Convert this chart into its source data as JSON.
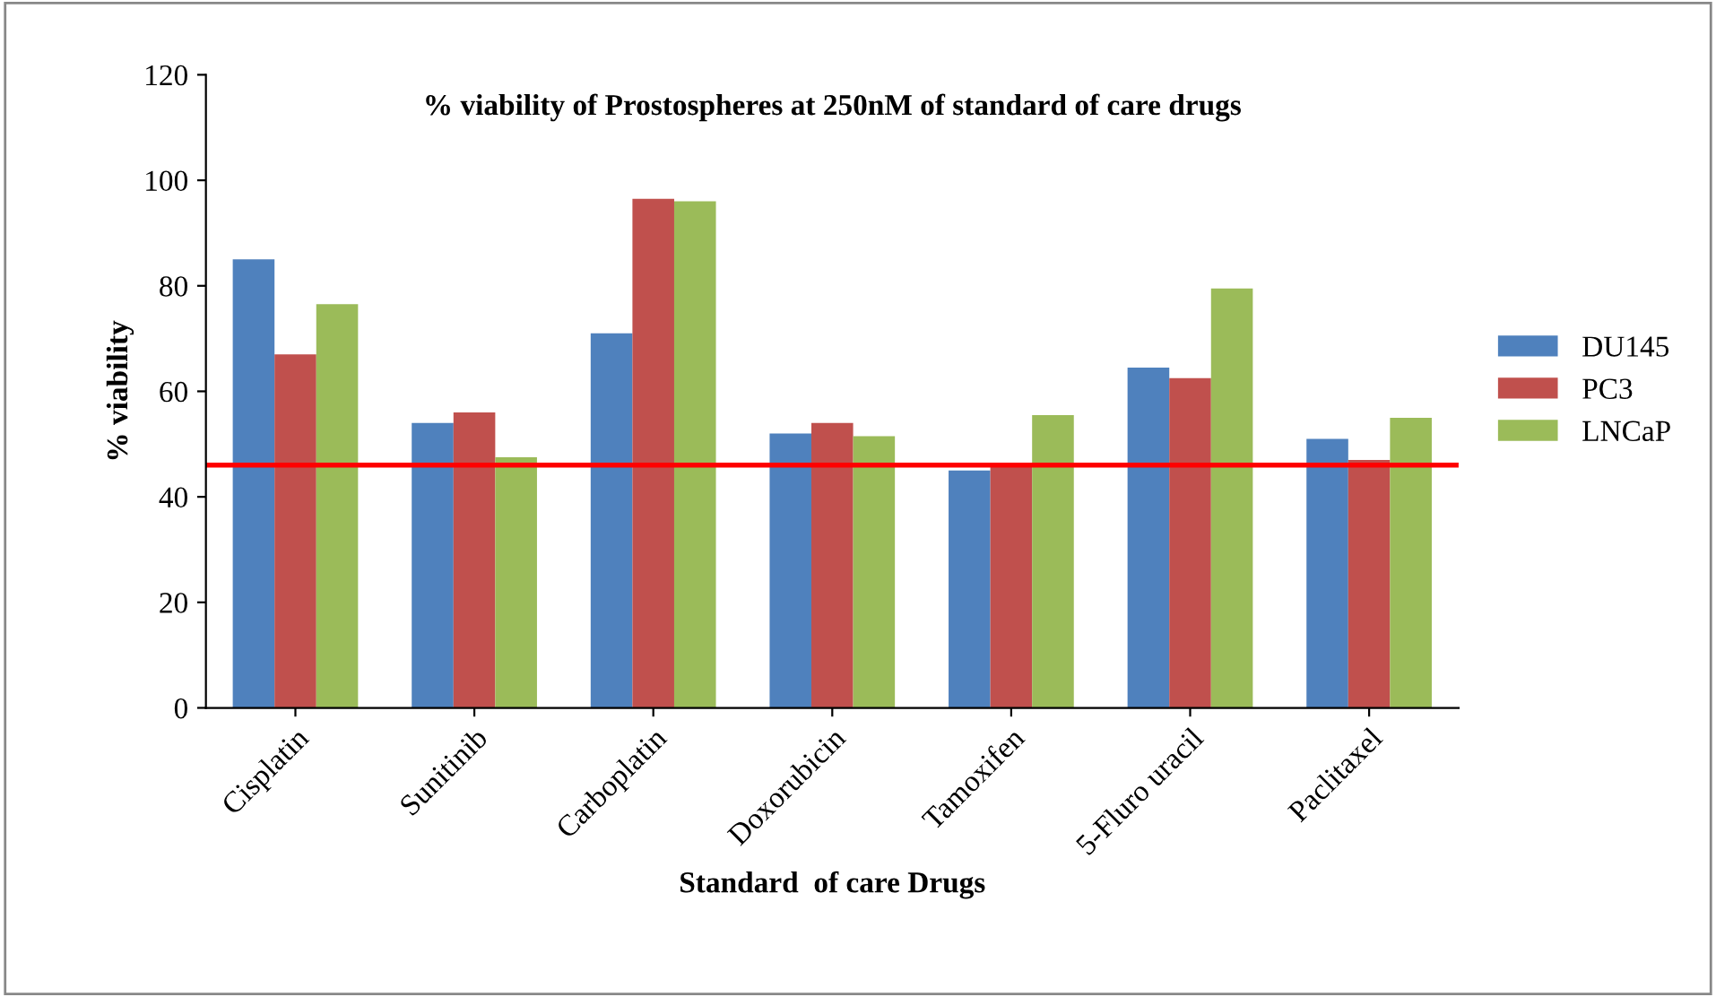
{
  "chart_data": {
    "type": "bar",
    "title": "% viability of Prostospheres at 250nM of standard of care drugs",
    "xlabel": "Standard  of care Drugs",
    "ylabel": "% viability",
    "categories": [
      "Cisplatin",
      "Sunitinib",
      "Carboplatin",
      "Doxorubicin",
      "Tamoxifen",
      "5-Fluro uracil",
      "Paclitaxel"
    ],
    "series": [
      {
        "name": "DU145",
        "color": "#4f81bd",
        "values": [
          85,
          54,
          71,
          52,
          45,
          64.5,
          51
        ]
      },
      {
        "name": "PC3",
        "color": "#c0504d",
        "values": [
          67,
          56,
          96.5,
          54,
          46.5,
          62.5,
          47
        ]
      },
      {
        "name": "LNCaP",
        "color": "#9bbb59",
        "values": [
          76.5,
          47.5,
          96,
          51.5,
          55.5,
          79.5,
          55
        ]
      }
    ],
    "ylim": [
      0,
      120
    ],
    "yticks": [
      0,
      20,
      40,
      60,
      80,
      100,
      120
    ],
    "ref_lines": [
      {
        "axis": "y",
        "value": 46,
        "color": "#ff0000"
      }
    ],
    "grid": false,
    "legend": "right"
  }
}
